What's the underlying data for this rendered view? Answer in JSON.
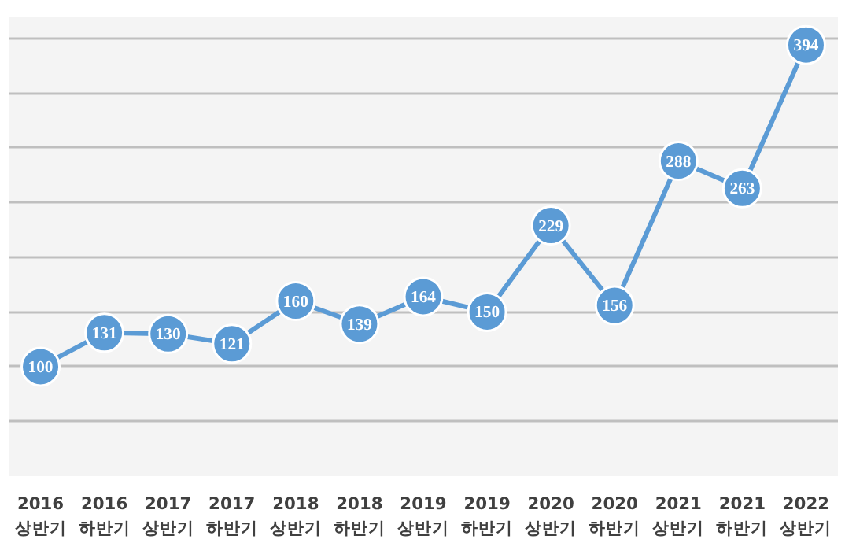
{
  "chart_data": {
    "type": "line",
    "categories": [
      "2016\n상반기",
      "2016\n하반기",
      "2017\n상반기",
      "2017\n하반기",
      "2018\n상반기",
      "2018\n하반기",
      "2019\n상반기",
      "2019\n하반기",
      "2020\n상반기",
      "2020\n하반기",
      "2021\n상반기",
      "2021\n하반기",
      "2022\n상반기"
    ],
    "series": [
      {
        "color": "#5b9bd5",
        "values": [
          100,
          131,
          130,
          121,
          160,
          139,
          164,
          150,
          229,
          156,
          288,
          263,
          394
        ]
      }
    ],
    "ylim": [
      0,
      420
    ],
    "yticks": [
      {
        "value": 0,
        "label": null
      },
      {
        "value": 50,
        "label": null
      },
      {
        "value": 100,
        "label": null
      },
      {
        "value": 150,
        "label": null
      },
      {
        "value": 200,
        "label": null
      },
      {
        "value": 250,
        "label": null
      },
      {
        "value": 300,
        "label": null
      },
      {
        "value": 350,
        "label": null
      },
      {
        "value": 400,
        "label": null
      }
    ],
    "tick_labels": "x",
    "grid": "y",
    "marker": "circle",
    "line_style": "solid",
    "data_labels": true
  }
}
